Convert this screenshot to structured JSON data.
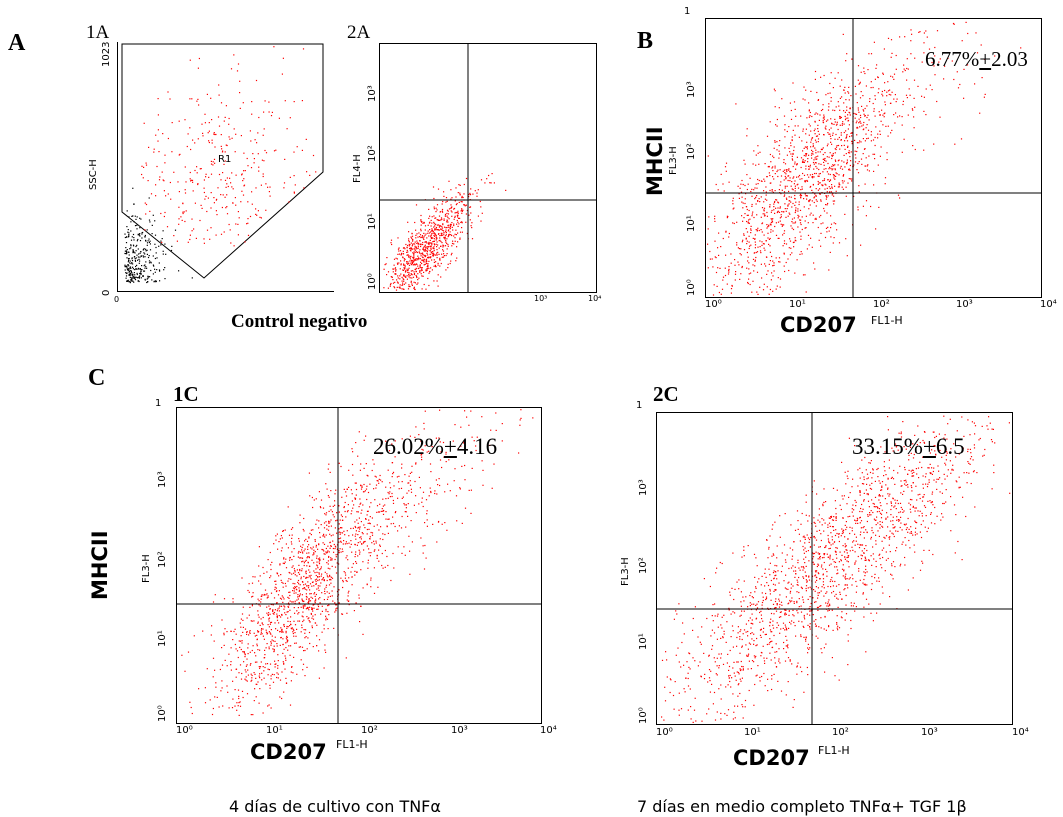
{
  "panels": {
    "a_letter": "A",
    "b_letter": "B",
    "c_letter": "C",
    "sub_1a": "1A",
    "sub_2a": "2A",
    "sub_1c": "1C",
    "sub_2c": "2C"
  },
  "captions": {
    "control": "Control negativo",
    "c1": "4 días de cultivo con TNFα",
    "c2": "7 días en medio completo TNFα+ TGF 1β"
  },
  "labels": {
    "mhcii": "MHCII",
    "cd207": "CD207",
    "fl1h": "FL1-H",
    "fl3h": "FL3-H",
    "fl4h": "FL4-H",
    "sscH": "SSC-H",
    "r1": "R1"
  },
  "percentages": {
    "b_value": "6.77%",
    "b_pm": "+",
    "b_sd": "2.03",
    "c1_value": "26.02%",
    "c1_pm": "+",
    "c1_sd": "4.16",
    "c2_value": "33.15%",
    "c2_pm": "+",
    "c2_sd": "6.5"
  },
  "ticks": {
    "d0": "10⁰",
    "d1": "10¹",
    "d2": "10²",
    "d3": "10³",
    "d4": "10⁴",
    "t1023": "1023",
    "t0": "0",
    "clip": "1"
  },
  "colors": {
    "event_color": "#ff0000",
    "gated_out_color": "#000000"
  },
  "chart_data": [
    {
      "id": "1A",
      "type": "scatter",
      "title": "",
      "ylabel": "SSC-H",
      "xlabel": "",
      "xlim": [
        0,
        1023
      ],
      "ylim": [
        0,
        1023
      ],
      "gate": "R1",
      "note": "Side scatter vs forward scatter with polygon gate R1; ungated events in black near origin"
    },
    {
      "id": "2A",
      "type": "scatter",
      "scale": "log",
      "xlim": [
        1,
        10000
      ],
      "ylim": [
        1,
        10000
      ],
      "ylabel": "FL4-H",
      "quadrant_x": 45,
      "quadrant_y": 25
    },
    {
      "id": "B",
      "type": "scatter",
      "scale": "log",
      "xlim": [
        1,
        10000
      ],
      "ylim": [
        1,
        10000
      ],
      "xlabel": "CD207 FL1-H",
      "ylabel": "MHCII FL3-H",
      "quadrant_x": 45,
      "quadrant_y": 30,
      "upper_right_percent": "6.77%±2.03"
    },
    {
      "id": "1C",
      "type": "scatter",
      "scale": "log",
      "xlim": [
        1,
        10000
      ],
      "ylim": [
        1,
        10000
      ],
      "xlabel": "CD207 FL1-H",
      "ylabel": "MHCII FL3-H",
      "quadrant_x": 50,
      "quadrant_y": 32,
      "upper_right_percent": "26.02%±4.16"
    },
    {
      "id": "2C",
      "type": "scatter",
      "scale": "log",
      "xlim": [
        1,
        10000
      ],
      "ylim": [
        1,
        10000
      ],
      "xlabel": "CD207 FL1-H",
      "ylabel": "FL3-H",
      "quadrant_x": 45,
      "quadrant_y": 30,
      "upper_right_percent": "33.15%±6.5"
    }
  ]
}
